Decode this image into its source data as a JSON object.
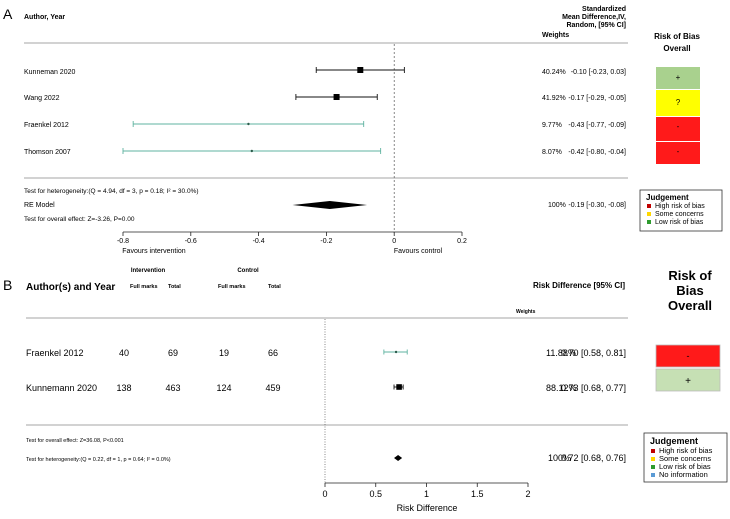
{
  "chart_data": [
    {
      "type": "forest",
      "panel_label": "A",
      "col_author": "Author, Year",
      "col_effect_lines": [
        "Standardized",
        "Mean Difference,IV,",
        "Random, [95% CI]"
      ],
      "col_weights": "Weights",
      "rob_title_lines": [
        "Risk of Bias",
        "Overall"
      ],
      "studies": [
        {
          "name": "Kunneman 2020",
          "est": -0.1,
          "lo": -0.23,
          "hi": 0.03,
          "weight_label": "40.24%",
          "ci_label": "-0.10 [-0.23,  0.03]",
          "rob": "+",
          "rob_color": "#a9d18e",
          "marker": "square-black"
        },
        {
          "name": "Wang 2022",
          "est": -0.17,
          "lo": -0.29,
          "hi": -0.05,
          "weight_label": "41.92%",
          "ci_label": "-0.17 [-0.29, -0.05]",
          "rob": "?",
          "rob_color": "#ffff00",
          "marker": "square-black"
        },
        {
          "name": "Fraenkel 2012",
          "est": -0.43,
          "lo": -0.77,
          "hi": -0.09,
          "weight_label": "9.77%",
          "ci_label": "-0.43 [-0.77, -0.09]",
          "rob": "-",
          "rob_color": "#ff1a1a",
          "marker": "dot-teal"
        },
        {
          "name": "Thomson 2007",
          "est": -0.42,
          "lo": -0.8,
          "hi": -0.04,
          "weight_label": "8.07%",
          "ci_label": "-0.42 [-0.80, -0.04]",
          "rob": "-",
          "rob_color": "#ff1a1a",
          "marker": "dot-teal"
        }
      ],
      "heterogeneity": "Test for heterogeneity:(Q = 4.94, df = 3, p = 0.18; I² = 30.0%)",
      "model_label": "RE Model",
      "overall_effect": "Test for overall effect: Z=-3.26, P=0.00",
      "pooled": {
        "est": -0.19,
        "lo": -0.3,
        "hi": -0.08,
        "weight_label": "100%",
        "ci_label": "-0.19 [-0.30, -0.08]"
      },
      "xlim": [
        -0.8,
        0.2
      ],
      "ticks": [
        -0.8,
        -0.6,
        -0.4,
        -0.2,
        0,
        0.2
      ],
      "tick_labels": [
        "-0.8",
        "-0.6",
        "-0.4",
        "-0.2",
        "0",
        "0.2"
      ],
      "ref_line": 0,
      "favours_left": "Favours intervention",
      "favours_right": "Favours control",
      "legend_title": "Judgement",
      "legend": [
        {
          "label": "High risk of bias",
          "color": "#c00000"
        },
        {
          "label": "Some concerns",
          "color": "#ffd700"
        },
        {
          "label": "Low risk of bias",
          "color": "#2e9b2e"
        }
      ]
    },
    {
      "type": "forest",
      "panel_label": "B",
      "col_author": "Author(s) and Year",
      "group_intervention": "Intervention",
      "group_control": "Control",
      "sub_full_marks": "Full marks",
      "sub_total": "Total",
      "col_effect": "Risk Difference [95% CI]",
      "col_weights": "Weights",
      "rob_title_lines": [
        "Risk of",
        "Bias",
        "Overall"
      ],
      "studies": [
        {
          "name": "Fraenkel 2012",
          "int_full": "40",
          "int_total": "69",
          "ctrl_full": "19",
          "ctrl_total": "66",
          "est": 0.7,
          "lo": 0.58,
          "hi": 0.81,
          "weight_label": "11.88%",
          "ci_label": "0.70 [0.58, 0.81]",
          "rob": "-",
          "rob_color": "#ff1a1a",
          "marker": "dot-teal"
        },
        {
          "name": "Kunnemann 2020",
          "int_full": "138",
          "int_total": "463",
          "ctrl_full": "124",
          "ctrl_total": "459",
          "est": 0.73,
          "lo": 0.68,
          "hi": 0.77,
          "weight_label": "88.12%",
          "ci_label": "0.73 [0.68, 0.77]",
          "rob": "+",
          "rob_color": "#c6e0b4",
          "marker": "square-black"
        }
      ],
      "overall_effect": "Test for overall effect: Z=36.08, P<0.001",
      "heterogeneity": "Test for heterogeneity:(Q = 0.22, df = 1, p = 0.64; I² = 0.0%)",
      "pooled": {
        "est": 0.72,
        "lo": 0.68,
        "hi": 0.76,
        "weight_label": "100%",
        "ci_label": "0.72 [0.68, 0.76]"
      },
      "xlim": [
        0,
        2
      ],
      "ticks": [
        0,
        0.5,
        1,
        1.5,
        2
      ],
      "tick_labels": [
        "0",
        "0.5",
        "1",
        "1.5",
        "2"
      ],
      "ref_line": 0,
      "xlabel": "Risk Difference",
      "legend_title": "Judgement",
      "legend": [
        {
          "label": "High risk of bias",
          "color": "#c00000"
        },
        {
          "label": "Some concerns",
          "color": "#ffd700"
        },
        {
          "label": "Low risk of bias",
          "color": "#2e9b2e"
        },
        {
          "label": "No information",
          "color": "#5b9bd5"
        }
      ]
    }
  ]
}
